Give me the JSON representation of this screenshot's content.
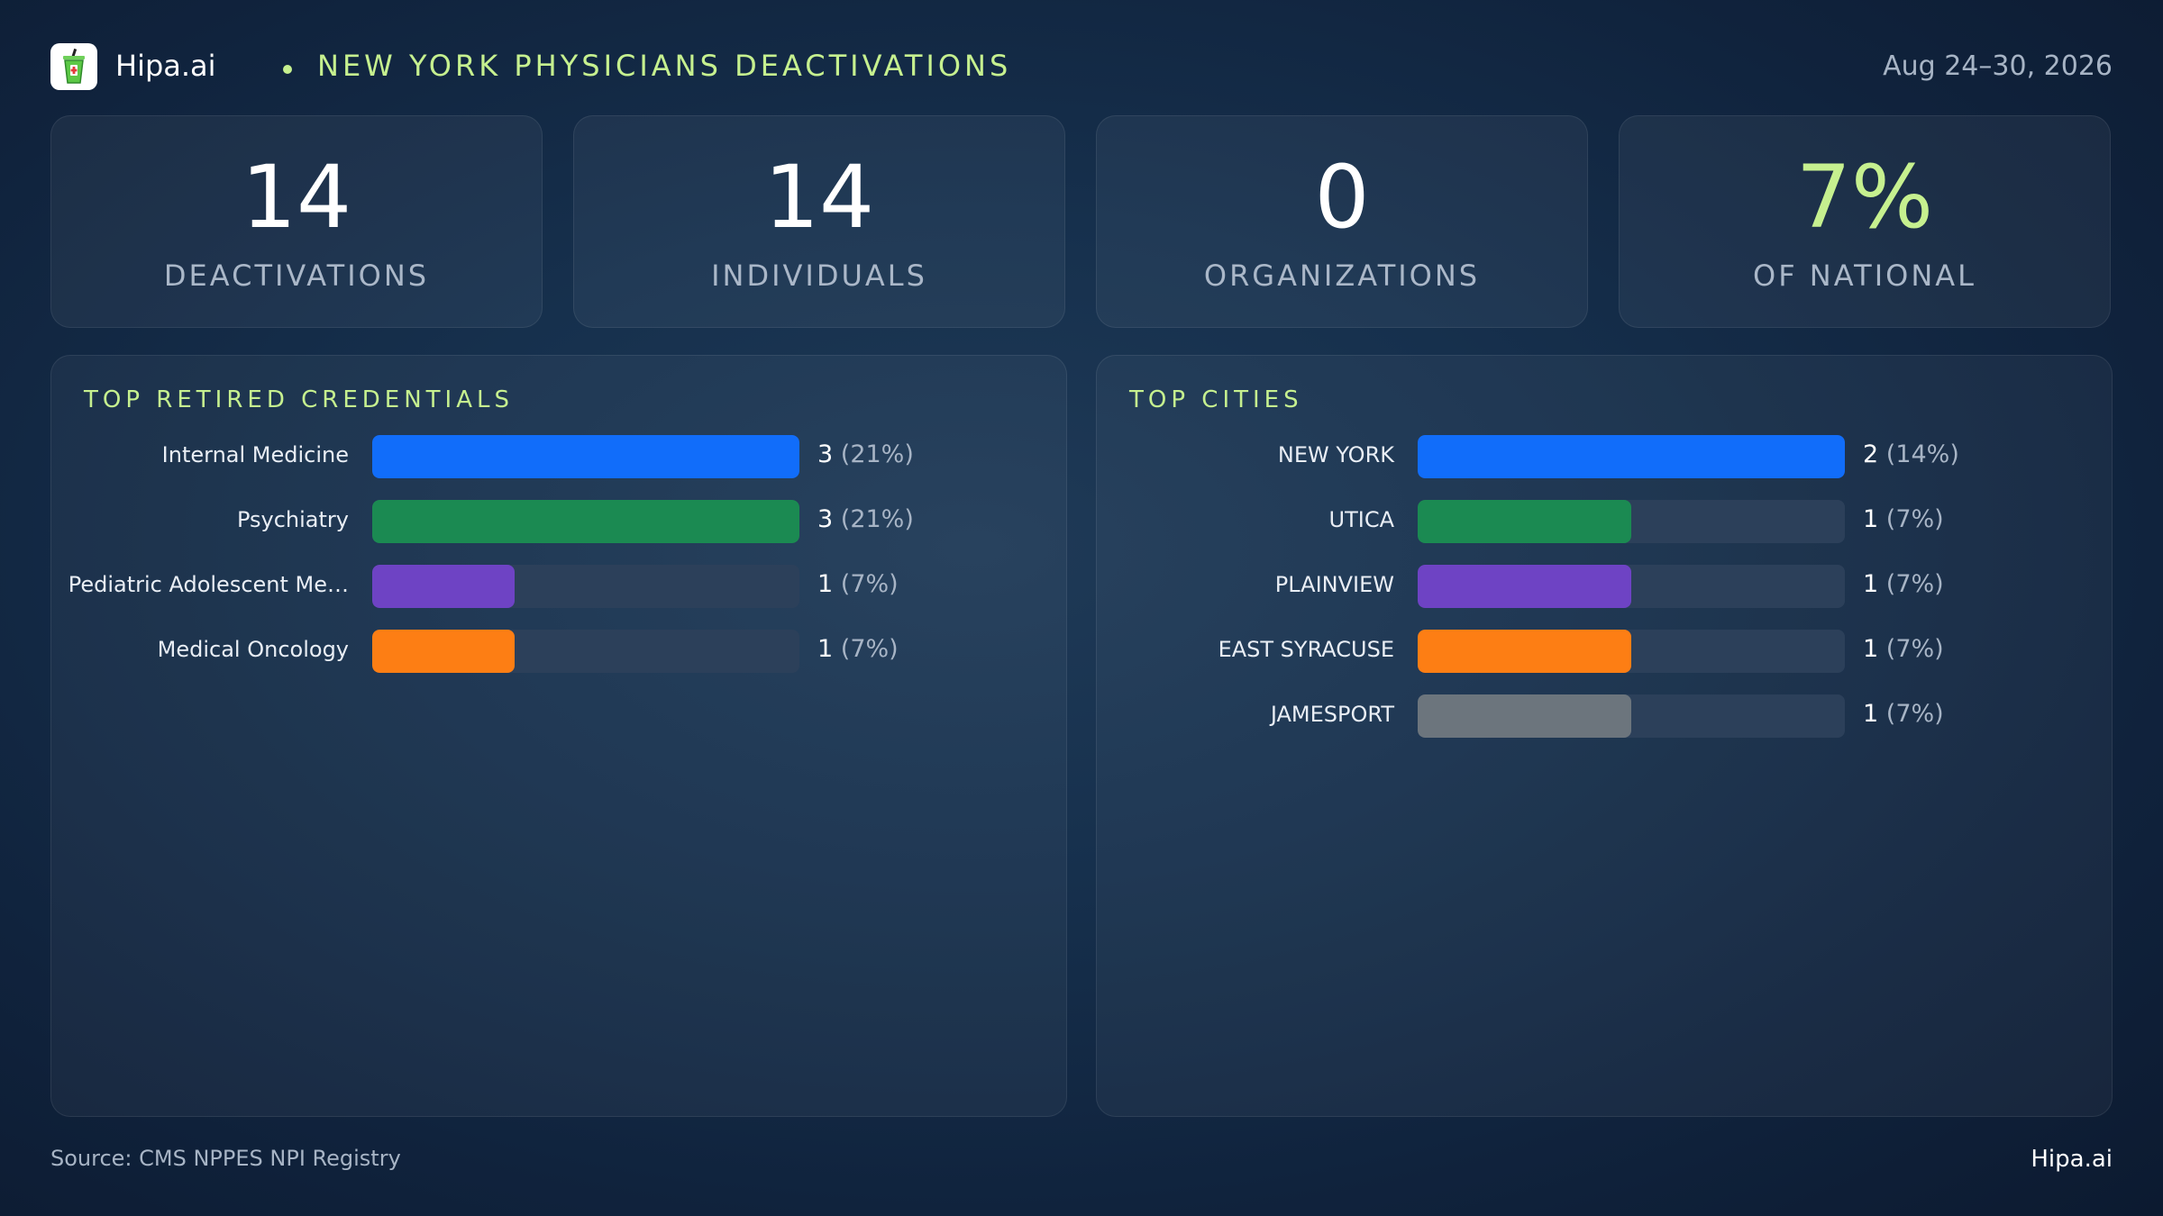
{
  "header": {
    "brand": "Hipa.ai",
    "title": "NEW YORK PHYSICIANS DEACTIVATIONS",
    "date_range": "Aug 24–30, 2026",
    "logo_icon": "cup-logo-icon"
  },
  "kpis": [
    {
      "value": "14",
      "label": "DEACTIVATIONS",
      "color": "#ffffff"
    },
    {
      "value": "14",
      "label": "INDIVIDUALS",
      "color": "#ffffff"
    },
    {
      "value": "0",
      "label": "ORGANIZATIONS",
      "color": "#ffffff"
    },
    {
      "value": "7%",
      "label": "OF NATIONAL",
      "color": "#c6f08f"
    }
  ],
  "chart_data": [
    {
      "type": "bar",
      "orientation": "horizontal",
      "title": "TOP RETIRED CREDENTIALS",
      "categories": [
        "Internal Medicine",
        "Psychiatry",
        "Pediatric Adolescent Me…",
        "Medical Oncology"
      ],
      "values": [
        3,
        3,
        1,
        1
      ],
      "value_labels": [
        "3",
        "3",
        "1",
        "1"
      ],
      "percent_labels": [
        "(21%)",
        "(21%)",
        "(7%)",
        "(7%)"
      ],
      "colors": [
        "#116dfa",
        "#1b8a52",
        "#6e43c4",
        "#fd7e14"
      ],
      "xlim": [
        0,
        3
      ]
    },
    {
      "type": "bar",
      "orientation": "horizontal",
      "title": "TOP CITIES",
      "categories": [
        "NEW YORK",
        "UTICA",
        "PLAINVIEW",
        "EAST SYRACUSE",
        "JAMESPORT"
      ],
      "values": [
        2,
        1,
        1,
        1,
        1
      ],
      "value_labels": [
        "2",
        "1",
        "1",
        "1",
        "1"
      ],
      "percent_labels": [
        "(14%)",
        "(7%)",
        "(7%)",
        "(7%)",
        "(7%)"
      ],
      "colors": [
        "#116dfa",
        "#1b8a52",
        "#6e43c4",
        "#fd7e14",
        "#6c757d"
      ],
      "xlim": [
        0,
        2
      ]
    }
  ],
  "footer": {
    "source": "Source: CMS NPPES NPI Registry",
    "brand": "Hipa.ai"
  }
}
